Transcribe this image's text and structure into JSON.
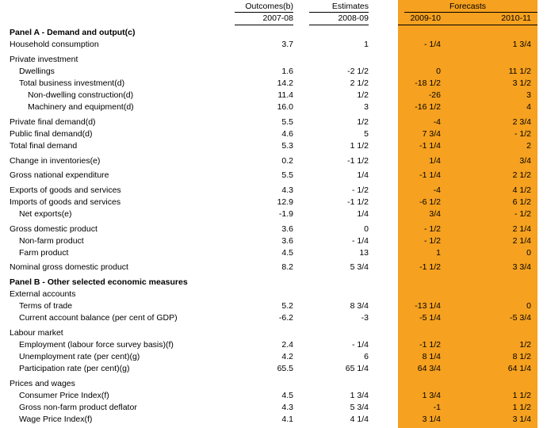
{
  "header": {
    "col1": {
      "top": "Outcomes(b)",
      "year": "2007-08"
    },
    "col2": {
      "top": "Estimates",
      "year": "2008-09"
    },
    "forecasts": "Forecasts",
    "col3_year": "2009-10",
    "col4_year": "2010-11"
  },
  "colors": {
    "forecast_band": "#F6A11F"
  },
  "rows": [
    {
      "label": "Panel A - Demand and output(c)",
      "kind": "heading",
      "indent": 0,
      "v": [
        "",
        "",
        "",
        ""
      ]
    },
    {
      "label": "Household consumption",
      "indent": 0,
      "v": [
        "3.7",
        "1",
        "- 1/4",
        "1 3/4"
      ]
    },
    {
      "label": "Private investment",
      "indent": 0,
      "gap": true,
      "v": [
        "",
        "",
        "",
        ""
      ]
    },
    {
      "label": "Dwellings",
      "indent": 1,
      "v": [
        "1.6",
        "-2 1/2",
        "0",
        "11 1/2"
      ]
    },
    {
      "label": "Total business investment(d)",
      "indent": 1,
      "v": [
        "14.2",
        "2 1/2",
        "-18 1/2",
        "3 1/2"
      ]
    },
    {
      "label": "Non-dwelling construction(d)",
      "indent": 2,
      "v": [
        "11.4",
        "1/2",
        "-26",
        "3"
      ]
    },
    {
      "label": "Machinery and equipment(d)",
      "indent": 2,
      "v": [
        "16.0",
        "3",
        "-16 1/2",
        "4"
      ]
    },
    {
      "label": "Private final demand(d)",
      "indent": 0,
      "gap": true,
      "v": [
        "5.5",
        "1/2",
        "-4",
        "2 3/4"
      ]
    },
    {
      "label": "Public final demand(d)",
      "indent": 0,
      "v": [
        "4.6",
        "5",
        "7 3/4",
        "- 1/2"
      ]
    },
    {
      "label": "Total final demand",
      "indent": 0,
      "v": [
        "5.3",
        "1 1/2",
        "-1 1/4",
        "2"
      ]
    },
    {
      "label": "Change in inventories(e)",
      "indent": 0,
      "gap": true,
      "v": [
        "0.2",
        "-1 1/2",
        "1/4",
        "3/4"
      ]
    },
    {
      "label": "Gross national expenditure",
      "indent": 0,
      "gap": true,
      "v": [
        "5.5",
        "1/4",
        "-1 1/4",
        "2 1/2"
      ]
    },
    {
      "label": "Exports of goods and services",
      "indent": 0,
      "gap": true,
      "v": [
        "4.3",
        "- 1/2",
        "-4",
        "4 1/2"
      ]
    },
    {
      "label": "Imports of goods and services",
      "indent": 0,
      "v": [
        "12.9",
        "-1 1/2",
        "-6 1/2",
        "6 1/2"
      ]
    },
    {
      "label": "Net exports(e)",
      "indent": 1,
      "v": [
        "-1.9",
        "1/4",
        "3/4",
        "- 1/2"
      ]
    },
    {
      "label": "Gross domestic product",
      "indent": 0,
      "gap": true,
      "v": [
        "3.6",
        "0",
        "- 1/2",
        "2 1/4"
      ]
    },
    {
      "label": "Non-farm product",
      "indent": 1,
      "v": [
        "3.6",
        "- 1/4",
        "- 1/2",
        "2 1/4"
      ]
    },
    {
      "label": "Farm product",
      "indent": 1,
      "v": [
        "4.5",
        "13",
        "1",
        "0"
      ]
    },
    {
      "label": "Nominal gross domestic product",
      "indent": 0,
      "gap": true,
      "v": [
        "8.2",
        "5 3/4",
        "-1 1/2",
        "3 3/4"
      ]
    },
    {
      "label": "Panel B - Other selected economic measures",
      "kind": "heading",
      "indent": 0,
      "gap": true,
      "v": [
        "",
        "",
        "",
        ""
      ]
    },
    {
      "label": "External accounts",
      "indent": 0,
      "v": [
        "",
        "",
        "",
        ""
      ]
    },
    {
      "label": "Terms of trade",
      "indent": 1,
      "v": [
        "5.2",
        "8 3/4",
        "-13 1/4",
        "0"
      ]
    },
    {
      "label": "Current account balance (per cent of GDP)",
      "indent": 1,
      "v": [
        "-6.2",
        "-3",
        "-5 1/4",
        "-5 3/4"
      ]
    },
    {
      "label": "Labour market",
      "indent": 0,
      "gap": true,
      "v": [
        "",
        "",
        "",
        ""
      ]
    },
    {
      "label": "Employment (labour force survey basis)(f)",
      "indent": 1,
      "v": [
        "2.4",
        "- 1/4",
        "-1 1/2",
        "1/2"
      ]
    },
    {
      "label": "Unemployment rate (per cent)(g)",
      "indent": 1,
      "v": [
        "4.2",
        "6",
        "8 1/4",
        "8 1/2"
      ]
    },
    {
      "label": "Participation rate (per cent)(g)",
      "indent": 1,
      "v": [
        "65.5",
        "65 1/4",
        "64 3/4",
        "64 1/4"
      ]
    },
    {
      "label": "Prices and wages",
      "indent": 0,
      "gap": true,
      "v": [
        "",
        "",
        "",
        ""
      ]
    },
    {
      "label": "Consumer Price Index(f)",
      "indent": 1,
      "v": [
        "4.5",
        "1 3/4",
        "1 3/4",
        "1 1/2"
      ]
    },
    {
      "label": "Gross non-farm product deflator",
      "indent": 1,
      "v": [
        "4.3",
        "5 3/4",
        "-1",
        "1 1/2"
      ]
    },
    {
      "label": "Wage Price Index(f)",
      "indent": 1,
      "v": [
        "4.1",
        "4 1/4",
        "3 1/4",
        "3 1/4"
      ]
    }
  ]
}
